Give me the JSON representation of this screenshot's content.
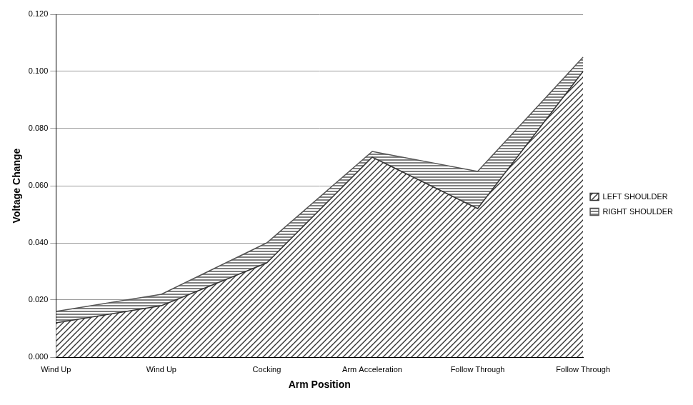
{
  "chart_data": {
    "type": "area",
    "x_label": "Arm Position",
    "y_label": "Voltage Change",
    "categories": [
      "Wind Up",
      "Wind Up",
      "Cocking",
      "Arm Acceleration",
      "Follow Through",
      "Follow Through"
    ],
    "series": [
      {
        "name": "LEFT SHOULDER",
        "color": "#333333",
        "values": [
          0.012,
          0.018,
          0.033,
          0.07,
          0.052,
          0.1
        ]
      },
      {
        "name": "RIGHT SHOULDER",
        "color": "#555555",
        "values": [
          0.016,
          0.022,
          0.04,
          0.072,
          0.065,
          0.105
        ]
      }
    ],
    "ylim": [
      0,
      0.12
    ],
    "yticks": [
      {
        "value": 0,
        "label": "0.000"
      },
      {
        "value": 0.02,
        "label": "0.020"
      },
      {
        "value": 0.04,
        "label": "0.040"
      },
      {
        "value": 0.06,
        "label": "0.060"
      },
      {
        "value": 0.08,
        "label": "0.080"
      },
      {
        "value": 0.1,
        "label": "0.100"
      },
      {
        "value": 0.12,
        "label": "0.120"
      }
    ],
    "grid": true,
    "legend": "right"
  }
}
